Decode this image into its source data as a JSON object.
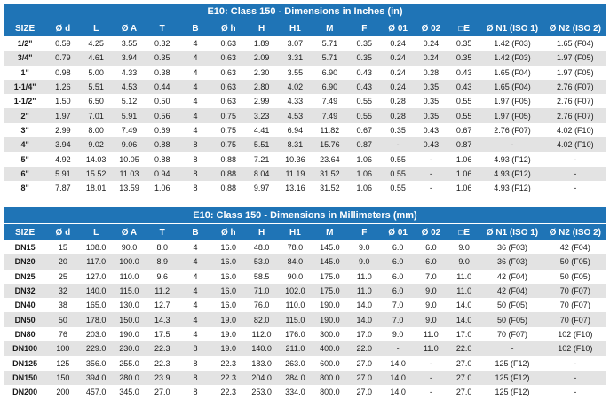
{
  "inches_table": {
    "title": "E10: Class 150 - Dimensions in Inches (in)",
    "columns": [
      "SIZE",
      "Ø d",
      "L",
      "Ø A",
      "T",
      "B",
      "Ø h",
      "H",
      "H1",
      "M",
      "F",
      "Ø 01",
      "Ø 02",
      "□E",
      "Ø N1 (ISO 1)",
      "Ø N2 (ISO 2)"
    ],
    "rows": [
      [
        "1/2\"",
        "0.59",
        "4.25",
        "3.55",
        "0.32",
        "4",
        "0.63",
        "1.89",
        "3.07",
        "5.71",
        "0.35",
        "0.24",
        "0.24",
        "0.35",
        "1.42 (F03)",
        "1.65 (F04)"
      ],
      [
        "3/4\"",
        "0.79",
        "4.61",
        "3.94",
        "0.35",
        "4",
        "0.63",
        "2.09",
        "3.31",
        "5.71",
        "0.35",
        "0.24",
        "0.24",
        "0.35",
        "1.42 (F03)",
        "1.97 (F05)"
      ],
      [
        "1\"",
        "0.98",
        "5.00",
        "4.33",
        "0.38",
        "4",
        "0.63",
        "2.30",
        "3.55",
        "6.90",
        "0.43",
        "0.24",
        "0.28",
        "0.43",
        "1.65 (F04)",
        "1.97 (F05)"
      ],
      [
        "1-1/4\"",
        "1.26",
        "5.51",
        "4.53",
        "0.44",
        "4",
        "0.63",
        "2.80",
        "4.02",
        "6.90",
        "0.43",
        "0.24",
        "0.35",
        "0.43",
        "1.65 (F04)",
        "2.76 (F07)"
      ],
      [
        "1-1/2\"",
        "1.50",
        "6.50",
        "5.12",
        "0.50",
        "4",
        "0.63",
        "2.99",
        "4.33",
        "7.49",
        "0.55",
        "0.28",
        "0.35",
        "0.55",
        "1.97 (F05)",
        "2.76 (F07)"
      ],
      [
        "2\"",
        "1.97",
        "7.01",
        "5.91",
        "0.56",
        "4",
        "0.75",
        "3.23",
        "4.53",
        "7.49",
        "0.55",
        "0.28",
        "0.35",
        "0.55",
        "1.97 (F05)",
        "2.76 (F07)"
      ],
      [
        "3\"",
        "2.99",
        "8.00",
        "7.49",
        "0.69",
        "4",
        "0.75",
        "4.41",
        "6.94",
        "11.82",
        "0.67",
        "0.35",
        "0.43",
        "0.67",
        "2.76 (F07)",
        "4.02 (F10)"
      ],
      [
        "4\"",
        "3.94",
        "9.02",
        "9.06",
        "0.88",
        "8",
        "0.75",
        "5.51",
        "8.31",
        "15.76",
        "0.87",
        "-",
        "0.43",
        "0.87",
        "-",
        "4.02 (F10)"
      ],
      [
        "5\"",
        "4.92",
        "14.03",
        "10.05",
        "0.88",
        "8",
        "0.88",
        "7.21",
        "10.36",
        "23.64",
        "1.06",
        "0.55",
        "-",
        "1.06",
        "4.93 (F12)",
        "-"
      ],
      [
        "6\"",
        "5.91",
        "15.52",
        "11.03",
        "0.94",
        "8",
        "0.88",
        "8.04",
        "11.19",
        "31.52",
        "1.06",
        "0.55",
        "-",
        "1.06",
        "4.93 (F12)",
        "-"
      ],
      [
        "8\"",
        "7.87",
        "18.01",
        "13.59",
        "1.06",
        "8",
        "0.88",
        "9.97",
        "13.16",
        "31.52",
        "1.06",
        "0.55",
        "-",
        "1.06",
        "4.93 (F12)",
        "-"
      ]
    ]
  },
  "mm_table": {
    "title": "E10: Class 150 - Dimensions in Millimeters (mm)",
    "columns": [
      "SIZE",
      "Ø d",
      "L",
      "Ø A",
      "T",
      "B",
      "Ø h",
      "H",
      "H1",
      "M",
      "F",
      "Ø 01",
      "Ø 02",
      "□E",
      "Ø N1 (ISO 1)",
      "Ø N2 (ISO 2)"
    ],
    "rows": [
      [
        "DN15",
        "15",
        "108.0",
        "90.0",
        "8.0",
        "4",
        "16.0",
        "48.0",
        "78.0",
        "145.0",
        "9.0",
        "6.0",
        "6.0",
        "9.0",
        "36 (F03)",
        "42 (F04)"
      ],
      [
        "DN20",
        "20",
        "117.0",
        "100.0",
        "8.9",
        "4",
        "16.0",
        "53.0",
        "84.0",
        "145.0",
        "9.0",
        "6.0",
        "6.0",
        "9.0",
        "36 (F03)",
        "50 (F05)"
      ],
      [
        "DN25",
        "25",
        "127.0",
        "110.0",
        "9.6",
        "4",
        "16.0",
        "58.5",
        "90.0",
        "175.0",
        "11.0",
        "6.0",
        "7.0",
        "11.0",
        "42 (F04)",
        "50 (F05)"
      ],
      [
        "DN32",
        "32",
        "140.0",
        "115.0",
        "11.2",
        "4",
        "16.0",
        "71.0",
        "102.0",
        "175.0",
        "11.0",
        "6.0",
        "9.0",
        "11.0",
        "42 (F04)",
        "70 (F07)"
      ],
      [
        "DN40",
        "38",
        "165.0",
        "130.0",
        "12.7",
        "4",
        "16.0",
        "76.0",
        "110.0",
        "190.0",
        "14.0",
        "7.0",
        "9.0",
        "14.0",
        "50 (F05)",
        "70 (F07)"
      ],
      [
        "DN50",
        "50",
        "178.0",
        "150.0",
        "14.3",
        "4",
        "19.0",
        "82.0",
        "115.0",
        "190.0",
        "14.0",
        "7.0",
        "9.0",
        "14.0",
        "50 (F05)",
        "70 (F07)"
      ],
      [
        "DN80",
        "76",
        "203.0",
        "190.0",
        "17.5",
        "4",
        "19.0",
        "112.0",
        "176.0",
        "300.0",
        "17.0",
        "9.0",
        "11.0",
        "17.0",
        "70 (F07)",
        "102 (F10)"
      ],
      [
        "DN100",
        "100",
        "229.0",
        "230.0",
        "22.3",
        "8",
        "19.0",
        "140.0",
        "211.0",
        "400.0",
        "22.0",
        "-",
        "11.0",
        "22.0",
        "-",
        "102 (F10)"
      ],
      [
        "DN125",
        "125",
        "356.0",
        "255.0",
        "22.3",
        "8",
        "22.3",
        "183.0",
        "263.0",
        "600.0",
        "27.0",
        "14.0",
        "-",
        "27.0",
        "125 (F12)",
        "-"
      ],
      [
        "DN150",
        "150",
        "394.0",
        "280.0",
        "23.9",
        "8",
        "22.3",
        "204.0",
        "284.0",
        "800.0",
        "27.0",
        "14.0",
        "-",
        "27.0",
        "125 (F12)",
        "-"
      ],
      [
        "DN200",
        "200",
        "457.0",
        "345.0",
        "27.0",
        "8",
        "22.3",
        "253.0",
        "334.0",
        "800.0",
        "27.0",
        "14.0",
        "-",
        "27.0",
        "125 (F12)",
        "-"
      ]
    ]
  }
}
